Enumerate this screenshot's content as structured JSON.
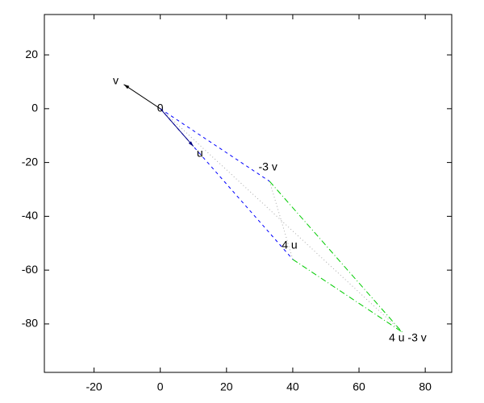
{
  "chart_data": {
    "type": "vector",
    "points": [
      {
        "name": "0",
        "x": 0,
        "y": 0
      },
      {
        "name": "v",
        "x": -11,
        "y": 9
      },
      {
        "name": "u",
        "x": 10,
        "y": -14
      },
      {
        "name": "-3 v",
        "x": 33,
        "y": -27
      },
      {
        "name": "4 u",
        "x": 40,
        "y": -56
      },
      {
        "name": "4 u -3 v",
        "x": 73,
        "y": -83
      }
    ],
    "xlim": [
      -35,
      88
    ],
    "ylim": [
      -98,
      35
    ],
    "xticks": [
      -20,
      0,
      20,
      40,
      60,
      80
    ],
    "yticks": [
      -80,
      -60,
      -40,
      -20,
      0,
      20
    ]
  }
}
